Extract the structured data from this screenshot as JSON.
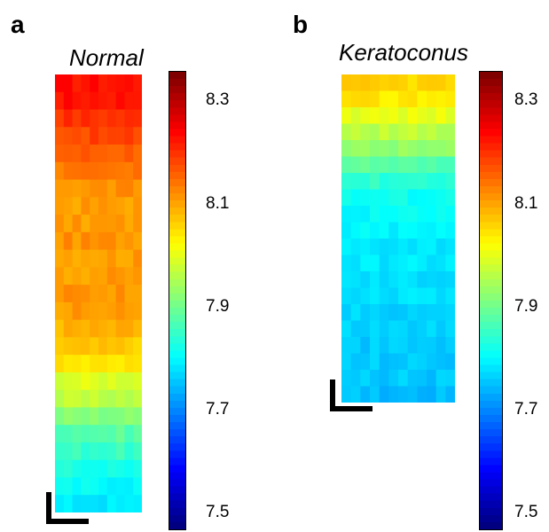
{
  "panels": [
    {
      "letter": "a",
      "title": "Normal",
      "colorbar_ticks": [
        "8.3",
        "8.1",
        "7.9",
        "7.7",
        "7.5"
      ]
    },
    {
      "letter": "b",
      "title": "Keratoconus",
      "colorbar_ticks": [
        "8.3",
        "8.1",
        "7.9",
        "7.7",
        "7.5"
      ]
    }
  ],
  "chart_data": [
    {
      "type": "heatmap",
      "title": "Normal",
      "colorbar": {
        "min": 7.45,
        "max": 8.38,
        "ticks": [
          8.3,
          8.1,
          7.9,
          7.7,
          7.5
        ],
        "colormap": "jet"
      },
      "row_profile": [
        8.25,
        8.25,
        8.22,
        8.2,
        8.18,
        8.15,
        8.13,
        8.12,
        8.12,
        8.13,
        8.12,
        8.12,
        8.13,
        8.12,
        8.1,
        8.08,
        8.05,
        8.0,
        7.97,
        7.92,
        7.88,
        7.85,
        7.82,
        7.8,
        7.78
      ]
    },
    {
      "type": "heatmap",
      "title": "Keratoconus",
      "colorbar": {
        "min": 7.45,
        "max": 8.38,
        "ticks": [
          8.3,
          8.1,
          7.9,
          7.7,
          7.5
        ],
        "colormap": "jet"
      },
      "row_profile": [
        8.07,
        8.05,
        8.01,
        7.97,
        7.93,
        7.88,
        7.84,
        7.81,
        7.8,
        7.79,
        7.78,
        7.78,
        7.77,
        7.77,
        7.76,
        7.76,
        7.75,
        7.75,
        7.75,
        7.74
      ]
    }
  ]
}
